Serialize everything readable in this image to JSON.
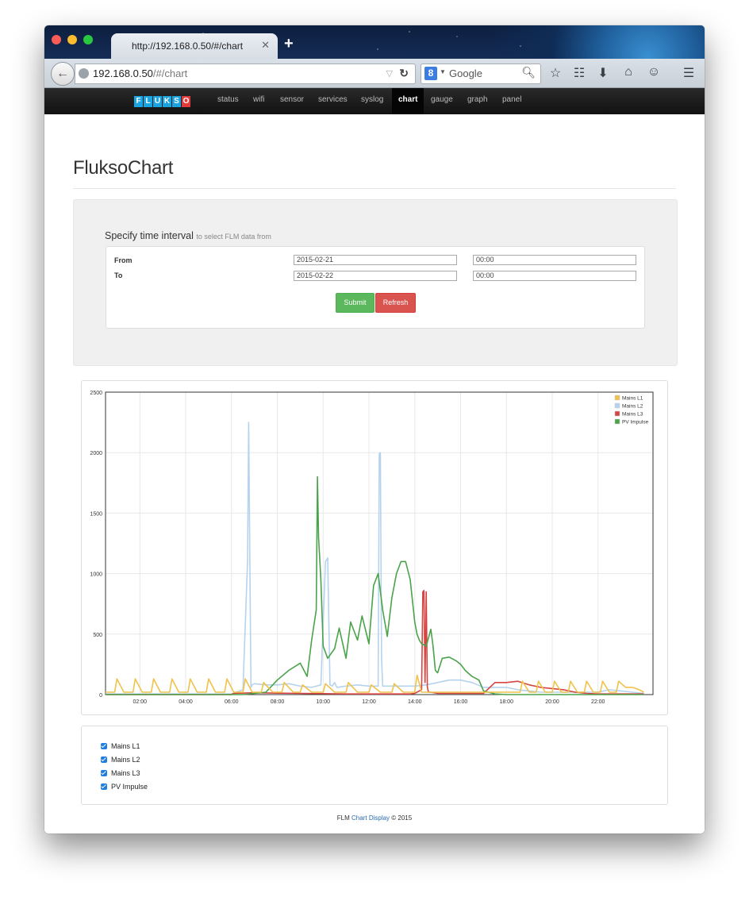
{
  "browser": {
    "tab_title": "http://192.168.0.50/#/chart",
    "tab_close": "✕",
    "new_tab": "+",
    "url_host": "192.168.0.50",
    "url_path": "/#/chart",
    "search_placeholder": "Google",
    "search_engine_letter": "8"
  },
  "nav": {
    "logo_letters": [
      "F",
      "L",
      "U",
      "K",
      "S",
      "O"
    ],
    "items": [
      {
        "label": "status",
        "active": false
      },
      {
        "label": "wifi",
        "active": false
      },
      {
        "label": "sensor",
        "active": false
      },
      {
        "label": "services",
        "active": false
      },
      {
        "label": "syslog",
        "active": false
      },
      {
        "label": "chart",
        "active": true
      },
      {
        "label": "gauge",
        "active": false
      },
      {
        "label": "graph",
        "active": false
      },
      {
        "label": "panel",
        "active": false
      }
    ]
  },
  "page": {
    "title": "FluksoChart"
  },
  "interval": {
    "heading": "Specify time interval",
    "subheading": "to select FLM data from",
    "from_label": "From",
    "to_label": "To",
    "from_date": "2015-02-21",
    "from_time": "00:00",
    "to_date": "2015-02-22",
    "to_time": "00:00",
    "submit_label": "Submit",
    "refresh_label": "Refresh"
  },
  "chart_data": {
    "type": "line",
    "title": "",
    "xlabel": "",
    "ylabel": "",
    "x_ticks": [
      "02:00",
      "04:00",
      "06:00",
      "08:00",
      "10:00",
      "12:00",
      "14:00",
      "16:00",
      "18:00",
      "20:00",
      "22:00"
    ],
    "y_ticks": [
      "0",
      "500",
      "1000",
      "1500",
      "2000",
      "2500"
    ],
    "xlim": [
      0.5,
      24.4
    ],
    "ylim": [
      0,
      2500
    ],
    "grid": true,
    "legend_position": "top-right",
    "series": [
      {
        "name": "Mains L1",
        "color": "#f0c24a",
        "x": [
          0.5,
          0.9,
          1.0,
          1.3,
          1.7,
          1.8,
          2.1,
          2.5,
          2.6,
          2.9,
          3.3,
          3.4,
          3.7,
          4.1,
          4.2,
          4.5,
          4.9,
          5.0,
          5.3,
          5.7,
          5.8,
          6.1,
          6.5,
          6.6,
          6.9,
          7.3,
          7.4,
          7.8,
          8.2,
          8.3,
          8.7,
          9.0,
          9.1,
          9.5,
          10.0,
          10.1,
          10.5,
          11.0,
          11.1,
          11.5,
          12.0,
          12.1,
          12.5,
          13.0,
          13.1,
          13.5,
          14.0,
          14.1,
          14.3,
          14.4,
          14.8,
          15.3,
          15.8,
          16.3,
          16.8,
          17.3,
          17.8,
          18.3,
          18.6,
          18.7,
          19.0,
          19.3,
          19.4,
          19.7,
          20.0,
          20.1,
          20.4,
          20.7,
          20.8,
          21.1,
          21.4,
          21.5,
          21.8,
          22.1,
          22.2,
          22.5,
          22.8,
          22.9,
          23.2,
          23.5,
          23.8,
          24.0
        ],
        "values": [
          20,
          20,
          130,
          20,
          20,
          130,
          20,
          20,
          130,
          20,
          20,
          130,
          20,
          20,
          130,
          20,
          20,
          130,
          20,
          20,
          130,
          20,
          20,
          130,
          20,
          20,
          100,
          20,
          20,
          100,
          20,
          20,
          80,
          20,
          20,
          90,
          20,
          20,
          100,
          20,
          20,
          80,
          20,
          20,
          90,
          20,
          20,
          160,
          20,
          20,
          20,
          20,
          20,
          20,
          20,
          20,
          20,
          20,
          20,
          110,
          20,
          20,
          110,
          20,
          20,
          110,
          20,
          20,
          110,
          20,
          20,
          110,
          20,
          20,
          110,
          20,
          20,
          110,
          60,
          60,
          40,
          20
        ]
      },
      {
        "name": "Mains L2",
        "color": "#b6d3ee",
        "x": [
          0.5,
          6.0,
          6.5,
          6.7,
          6.75,
          6.8,
          6.85,
          6.9,
          7.0,
          7.5,
          8.0,
          8.5,
          9.0,
          9.5,
          9.9,
          10.1,
          10.2,
          10.3,
          10.4,
          10.5,
          10.6,
          11.0,
          11.5,
          12.0,
          12.4,
          12.45,
          12.5,
          12.55,
          12.6,
          13.0,
          13.5,
          14.0,
          14.5,
          15.0,
          15.5,
          16.0,
          16.5,
          17.0,
          17.5,
          18.0,
          18.5,
          19.0,
          19.5,
          20.0,
          20.5,
          21.0,
          21.5,
          22.0,
          22.5,
          23.0,
          23.5,
          24.0
        ],
        "values": [
          5,
          5,
          40,
          1100,
          2250,
          1100,
          60,
          80,
          90,
          80,
          80,
          90,
          70,
          60,
          80,
          1100,
          1130,
          80,
          70,
          100,
          60,
          70,
          80,
          70,
          70,
          1990,
          2000,
          300,
          70,
          70,
          70,
          70,
          80,
          100,
          120,
          120,
          100,
          60,
          60,
          60,
          40,
          30,
          20,
          20,
          20,
          20,
          20,
          20,
          40,
          30,
          20,
          10
        ]
      },
      {
        "name": "Mains L3",
        "color": "#d64541",
        "x": [
          0.5,
          6.0,
          6.1,
          7.0,
          8.0,
          9.0,
          10.0,
          11.0,
          12.0,
          13.0,
          13.8,
          14.0,
          14.3,
          14.35,
          14.4,
          14.45,
          14.5,
          14.55,
          14.6,
          14.7,
          15.0,
          16.0,
          17.0,
          17.5,
          18.0,
          18.5,
          19.0,
          19.5,
          20.0,
          20.5,
          21.0,
          21.5,
          22.0,
          24.0
        ],
        "values": [
          0,
          0,
          10,
          15,
          12,
          10,
          8,
          5,
          5,
          5,
          5,
          10,
          40,
          850,
          860,
          100,
          850,
          60,
          20,
          20,
          10,
          10,
          10,
          100,
          100,
          110,
          80,
          60,
          50,
          40,
          20,
          10,
          5,
          5
        ]
      },
      {
        "name": "PV Impulse",
        "color": "#4aa34a",
        "x": [
          0.5,
          6.5,
          7.0,
          7.5,
          8.0,
          8.5,
          9.0,
          9.3,
          9.5,
          9.7,
          9.75,
          9.8,
          9.9,
          10.0,
          10.2,
          10.5,
          10.7,
          11.0,
          11.2,
          11.5,
          11.7,
          12.0,
          12.2,
          12.4,
          12.6,
          12.8,
          13.0,
          13.2,
          13.4,
          13.6,
          13.8,
          14.0,
          14.1,
          14.2,
          14.3,
          14.5,
          14.7,
          14.8,
          14.9,
          15.0,
          15.2,
          15.5,
          15.8,
          16.0,
          16.2,
          16.5,
          16.8,
          17.0,
          17.5,
          18.0,
          24.0
        ],
        "values": [
          0,
          0,
          10,
          20,
          120,
          200,
          260,
          150,
          450,
          700,
          1800,
          1300,
          950,
          400,
          300,
          380,
          550,
          300,
          600,
          450,
          650,
          420,
          900,
          1000,
          700,
          480,
          800,
          1000,
          1100,
          1100,
          950,
          600,
          500,
          450,
          420,
          400,
          540,
          400,
          200,
          180,
          300,
          310,
          280,
          250,
          200,
          150,
          120,
          30,
          5,
          0,
          0
        ]
      }
    ]
  },
  "checkboxes": [
    {
      "label": "Mains L1",
      "checked": true
    },
    {
      "label": "Mains L2",
      "checked": true
    },
    {
      "label": "Mains L3",
      "checked": true
    },
    {
      "label": "PV Impulse",
      "checked": true
    }
  ],
  "footer": {
    "prefix": "FLM",
    "link": "Chart Display",
    "suffix": "© 2015"
  }
}
